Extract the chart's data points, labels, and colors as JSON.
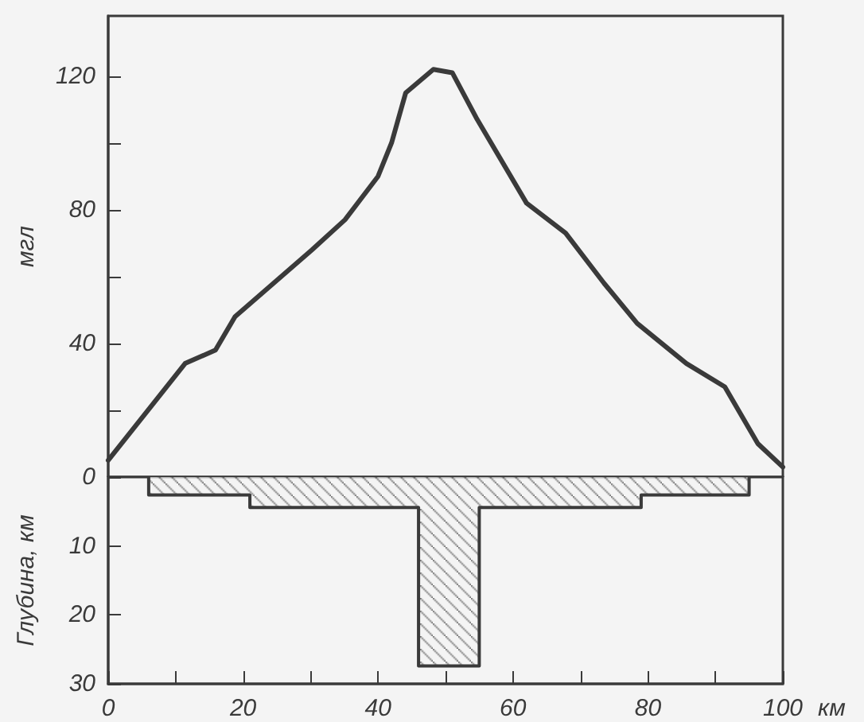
{
  "chart_data": [
    {
      "type": "line",
      "ylabel": "мгл",
      "color": "#3a3a3a",
      "tick_labels": "y",
      "xlim": [
        0,
        100
      ],
      "ylim": [
        0,
        138
      ],
      "yticks": [
        {
          "value": 0,
          "label": null
        },
        {
          "value": 20,
          "label": null
        },
        40,
        {
          "value": 60,
          "label": null
        },
        80,
        {
          "value": 100,
          "label": null
        },
        120
      ],
      "x": [
        0,
        11.4,
        15.9,
        18.8,
        24.5,
        30.2,
        35.1,
        40,
        42,
        44.1,
        48.2,
        51,
        54.7,
        62,
        67.8,
        73.5,
        78.4,
        85.7,
        91.4,
        96.3,
        100
      ],
      "values": [
        5,
        34,
        38,
        48,
        58,
        68,
        77,
        90,
        100,
        115,
        122,
        121,
        107,
        82,
        73,
        58,
        46,
        34,
        27,
        10,
        3
      ]
    },
    {
      "type": "area",
      "ylabel": "Глубина, км",
      "xlabel": "км",
      "color": "#3a3a3a",
      "xlim": [
        0,
        100
      ],
      "ylim": [
        30,
        0
      ],
      "yticks": [
        0,
        10,
        20,
        30
      ],
      "xticks": [
        0,
        {
          "value": 10,
          "label": null
        },
        20,
        {
          "value": 30,
          "label": null
        },
        40,
        {
          "value": 50,
          "label": null
        },
        60,
        {
          "value": 70,
          "label": null
        },
        80,
        {
          "value": 90,
          "label": null
        },
        100
      ],
      "x": [
        6,
        6,
        21,
        21,
        46,
        46,
        55,
        55,
        79,
        79,
        95,
        95
      ],
      "values": [
        0,
        2.6,
        2.6,
        4.4,
        4.4,
        27.4,
        27.4,
        4.4,
        4.4,
        2.6,
        2.6,
        0
      ]
    }
  ]
}
